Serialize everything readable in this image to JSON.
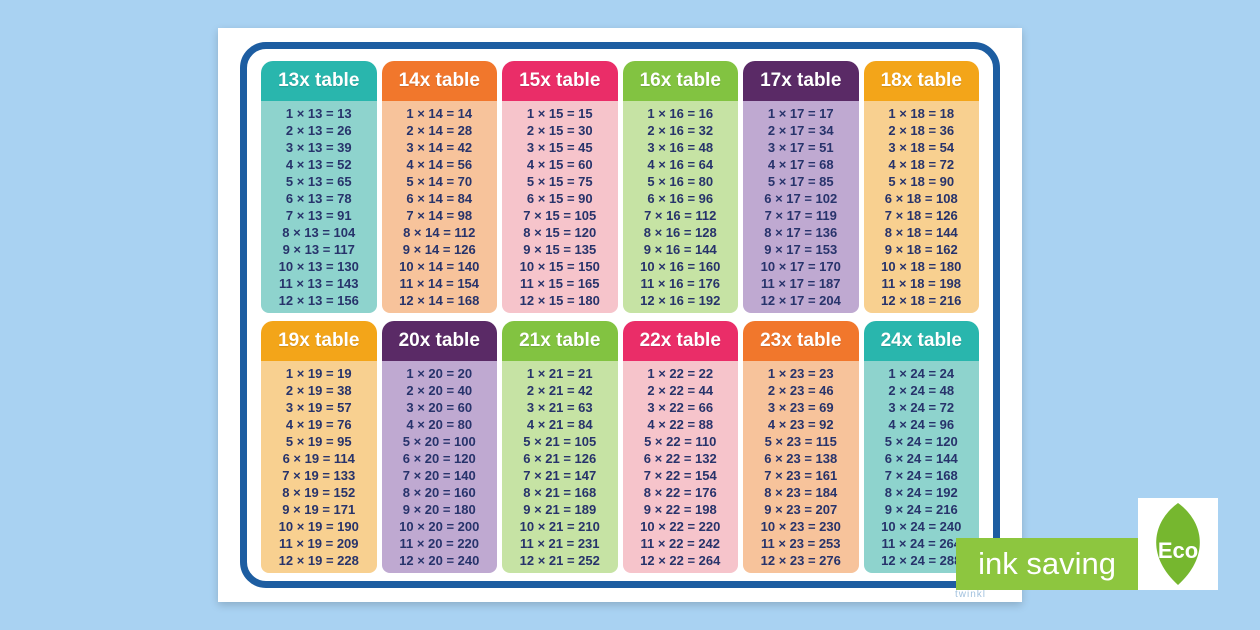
{
  "page": {
    "background_color": "#a9d2f2",
    "border_color": "#1d5da1",
    "text_color": "#27336b"
  },
  "watermark": "twinkl",
  "eco_badge": {
    "label": "ink saving",
    "eco_label": "Eco",
    "bar_color": "#8dc63f",
    "leaf_color": "#76b72f"
  },
  "tables": [
    {
      "label": "13x table",
      "header_color": "#29b6ad",
      "body_color": "#8ed3cd",
      "rows": [
        "1 × 13 = 13",
        "2 × 13 = 26",
        "3 × 13 = 39",
        "4 × 13 = 52",
        "5 × 13 = 65",
        "6 × 13 = 78",
        "7 × 13 = 91",
        "8 × 13 = 104",
        "9 × 13 = 117",
        "10 × 13 = 130",
        "11 × 13 = 143",
        "12 × 13 = 156"
      ]
    },
    {
      "label": "14x table",
      "header_color": "#f1772c",
      "body_color": "#f7c39b",
      "rows": [
        "1 × 14 = 14",
        "2 × 14 = 28",
        "3 × 14 = 42",
        "4 × 14 = 56",
        "5 × 14 = 70",
        "6 × 14 = 84",
        "7 × 14 = 98",
        "8 × 14 = 112",
        "9 × 14 = 126",
        "10 × 14 = 140",
        "11 × 14 = 154",
        "12 × 14 = 168"
      ]
    },
    {
      "label": "15x table",
      "header_color": "#ea2d68",
      "body_color": "#f6c4cb",
      "rows": [
        "1 × 15 = 15",
        "2 × 15 = 30",
        "3 × 15 = 45",
        "4 × 15 = 60",
        "5 × 15 = 75",
        "6 × 15 = 90",
        "7 × 15 = 105",
        "8 × 15 = 120",
        "9 × 15 = 135",
        "10 × 15 = 150",
        "11 × 15 = 165",
        "12 × 15 = 180"
      ]
    },
    {
      "label": "16x table",
      "header_color": "#82c341",
      "body_color": "#c6e3a4",
      "rows": [
        "1 × 16 = 16",
        "2 × 16 = 32",
        "3 × 16 = 48",
        "4 × 16 = 64",
        "5 × 16 = 80",
        "6 × 16 = 96",
        "7 × 16 = 112",
        "8 × 16 = 128",
        "9 × 16 = 144",
        "10 × 16 = 160",
        "11 × 16 = 176",
        "12 × 16 = 192"
      ]
    },
    {
      "label": "17x table",
      "header_color": "#5a2a66",
      "body_color": "#bfa9d1",
      "rows": [
        "1 × 17 = 17",
        "2 × 17 = 34",
        "3 × 17 = 51",
        "4 × 17 = 68",
        "5 × 17 = 85",
        "6 × 17 = 102",
        "7 × 17 = 119",
        "8 × 17 = 136",
        "9 × 17 = 153",
        "10 × 17 = 170",
        "11 × 17 = 187",
        "12 × 17 = 204"
      ]
    },
    {
      "label": "18x table",
      "header_color": "#f3a519",
      "body_color": "#f8d090",
      "rows": [
        "1 × 18 = 18",
        "2 × 18 = 36",
        "3 × 18 = 54",
        "4 × 18 = 72",
        "5 × 18 = 90",
        "6 × 18 = 108",
        "7 × 18 = 126",
        "8 × 18 = 144",
        "9 × 18 = 162",
        "10 × 18 = 180",
        "11 × 18 = 198",
        "12 × 18 = 216"
      ]
    },
    {
      "label": "19x table",
      "header_color": "#f3a519",
      "body_color": "#f8d090",
      "rows": [
        "1 × 19 = 19",
        "2 × 19 = 38",
        "3 × 19 = 57",
        "4 × 19 = 76",
        "5 × 19 = 95",
        "6 × 19 = 114",
        "7 × 19 = 133",
        "8 × 19 = 152",
        "9 × 19 = 171",
        "10 × 19 = 190",
        "11 × 19 = 209",
        "12 × 19 = 228"
      ]
    },
    {
      "label": "20x table",
      "header_color": "#5a2a66",
      "body_color": "#bfa9d1",
      "rows": [
        "1 × 20 = 20",
        "2 × 20 = 40",
        "3 × 20 = 60",
        "4 × 20 = 80",
        "5 × 20 = 100",
        "6 × 20 = 120",
        "7 × 20 = 140",
        "8 × 20 = 160",
        "9 × 20 = 180",
        "10 × 20 = 200",
        "11 × 20 = 220",
        "12 × 20 = 240"
      ]
    },
    {
      "label": "21x table",
      "header_color": "#82c341",
      "body_color": "#c6e3a4",
      "rows": [
        "1 × 21 = 21",
        "2 × 21 = 42",
        "3 × 21 = 63",
        "4 × 21 = 84",
        "5 × 21 = 105",
        "6 × 21 = 126",
        "7 × 21 = 147",
        "8 × 21 = 168",
        "9 × 21 = 189",
        "10 × 21 = 210",
        "11 × 21 = 231",
        "12 × 21 = 252"
      ]
    },
    {
      "label": "22x table",
      "header_color": "#ea2d68",
      "body_color": "#f6c4cb",
      "rows": [
        "1 × 22 = 22",
        "2 × 22 = 44",
        "3 × 22 = 66",
        "4 × 22 = 88",
        "5 × 22 = 110",
        "6 × 22 = 132",
        "7 × 22 = 154",
        "8 × 22 = 176",
        "9 × 22 = 198",
        "10 × 22 = 220",
        "11 × 22 = 242",
        "12 × 22 = 264"
      ]
    },
    {
      "label": "23x table",
      "header_color": "#f1772c",
      "body_color": "#f7c39b",
      "rows": [
        "1 × 23 = 23",
        "2 × 23 = 46",
        "3 × 23 = 69",
        "4 × 23 = 92",
        "5 × 23 = 115",
        "6 × 23 = 138",
        "7 × 23 = 161",
        "8 × 23 = 184",
        "9 × 23 = 207",
        "10 × 23 = 230",
        "11 × 23 = 253",
        "12 × 23 = 276"
      ]
    },
    {
      "label": "24x table",
      "header_color": "#29b6ad",
      "body_color": "#8ed3cd",
      "rows": [
        "1 × 24 = 24",
        "2 × 24 = 48",
        "3 × 24 = 72",
        "4 × 24 = 96",
        "5 × 24 = 120",
        "6 × 24 = 144",
        "7 × 24 = 168",
        "8 × 24 = 192",
        "9 × 24 = 216",
        "10 × 24 = 240",
        "11 × 24 = 264",
        "12 × 24 = 288"
      ]
    }
  ]
}
